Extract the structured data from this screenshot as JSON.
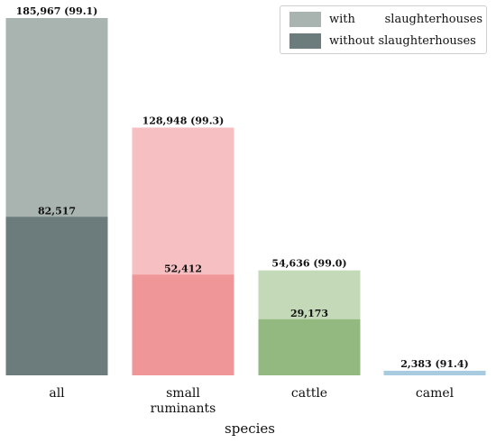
{
  "chart_data": {
    "type": "bar",
    "stacked": "overlay",
    "xlabel": "species",
    "ylabel": "",
    "ylim": [
      0,
      190000
    ],
    "grid": false,
    "legend_position": "top-right",
    "categories": [
      "all",
      "small\nruminants",
      "cattle",
      "camel"
    ],
    "series": [
      {
        "name": "with slaughterhouses",
        "values": [
          185967,
          128948,
          54636,
          2383
        ],
        "labels": [
          "185,967 (99.1)",
          "128,948 (99.3)",
          "54,636 (99.0)",
          "2,383 (91.4)"
        ]
      },
      {
        "name": "without slaughterhouses",
        "values": [
          82517,
          52412,
          29173,
          0
        ],
        "labels": [
          "82,517",
          "52,412",
          "29,173",
          ""
        ]
      }
    ],
    "colors": {
      "with": [
        "#a9b4b1",
        "#f6bfc2",
        "#c4d9b8",
        "#a9cbe0"
      ],
      "without": [
        "#6c7c7d",
        "#ee9698",
        "#93b880",
        "#6e9fbf"
      ]
    }
  },
  "legend": {
    "with_label": [
      "with",
      "slaughterhouses"
    ],
    "without_label": "without slaughterhouses",
    "with_color": "#a9b4b1",
    "without_color": "#6c7c7d"
  }
}
